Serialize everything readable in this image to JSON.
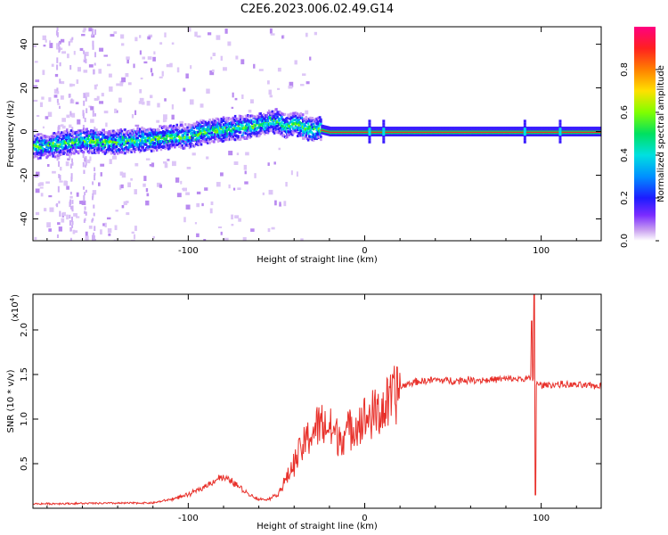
{
  "title": "C2E6.2023.006.02.49.G14",
  "chart_data": [
    {
      "type": "heatmap",
      "xlabel": "Height of straight line (km)",
      "ylabel": "Frequency (Hz)",
      "xlim": [
        -188,
        134
      ],
      "ylim": [
        -50,
        48
      ],
      "xticks": [
        -100,
        0,
        100
      ],
      "yticks": [
        -40,
        -20,
        0,
        20,
        40
      ],
      "colorbar": {
        "label": "Normalized spectral amplitude",
        "range": [
          0,
          1
        ],
        "ticks": [
          "0.0",
          "0.2",
          "0.4",
          "0.6",
          "0.8"
        ]
      },
      "ridge": {
        "x": [
          -188,
          -175,
          -160,
          -145,
          -130,
          -115,
          -100,
          -90,
          -80,
          -70,
          -60,
          -50,
          -45,
          -40,
          -35,
          -30,
          -25,
          -20,
          0,
          50,
          100,
          134
        ],
        "y": [
          -7,
          -6,
          -4,
          -5,
          -4,
          -3,
          -2,
          0,
          1,
          2,
          3,
          5,
          2,
          4,
          2,
          1,
          1,
          0,
          0,
          0,
          0,
          0
        ]
      }
    },
    {
      "type": "line",
      "xlabel": "Height of straight line (km)",
      "ylabel": "SNR (10 * v/v)",
      "ylabel_scale": "(x10",
      "ylabel_scale_exp": "4",
      "ylabel_scale_close": ")",
      "xlim": [
        -188,
        134
      ],
      "ylim": [
        0,
        2.4
      ],
      "xticks": [
        -100,
        0,
        100
      ],
      "yticks": [
        0.5,
        1.0,
        1.5,
        2.0
      ],
      "series": [
        {
          "color": "#e8302a",
          "envelope": {
            "x": [
              -188,
              -120,
              -110,
              -100,
              -90,
              -82,
              -75,
              -70,
              -65,
              -60,
              -55,
              -50,
              -45,
              -40,
              -35,
              -30,
              -25,
              -20,
              -15,
              -10,
              -5,
              0,
              5,
              10,
              15,
              20,
              25,
              30,
              40,
              50,
              60,
              70,
              80,
              90,
              95,
              97,
              99,
              100,
              110,
              120,
              134
            ],
            "y": [
              0.05,
              0.06,
              0.1,
              0.15,
              0.25,
              0.35,
              0.3,
              0.22,
              0.15,
              0.1,
              0.1,
              0.15,
              0.3,
              0.5,
              0.7,
              0.85,
              0.95,
              0.9,
              0.8,
              0.85,
              0.95,
              1.0,
              1.05,
              1.1,
              1.2,
              1.35,
              1.4,
              1.42,
              1.44,
              1.43,
              1.44,
              1.44,
              1.45,
              1.45,
              1.45,
              1.4,
              1.38,
              1.38,
              1.39,
              1.38,
              1.37
            ]
          },
          "spike": {
            "x": 96,
            "ymax": 2.4,
            "ymin": 0.15
          }
        }
      ]
    }
  ]
}
